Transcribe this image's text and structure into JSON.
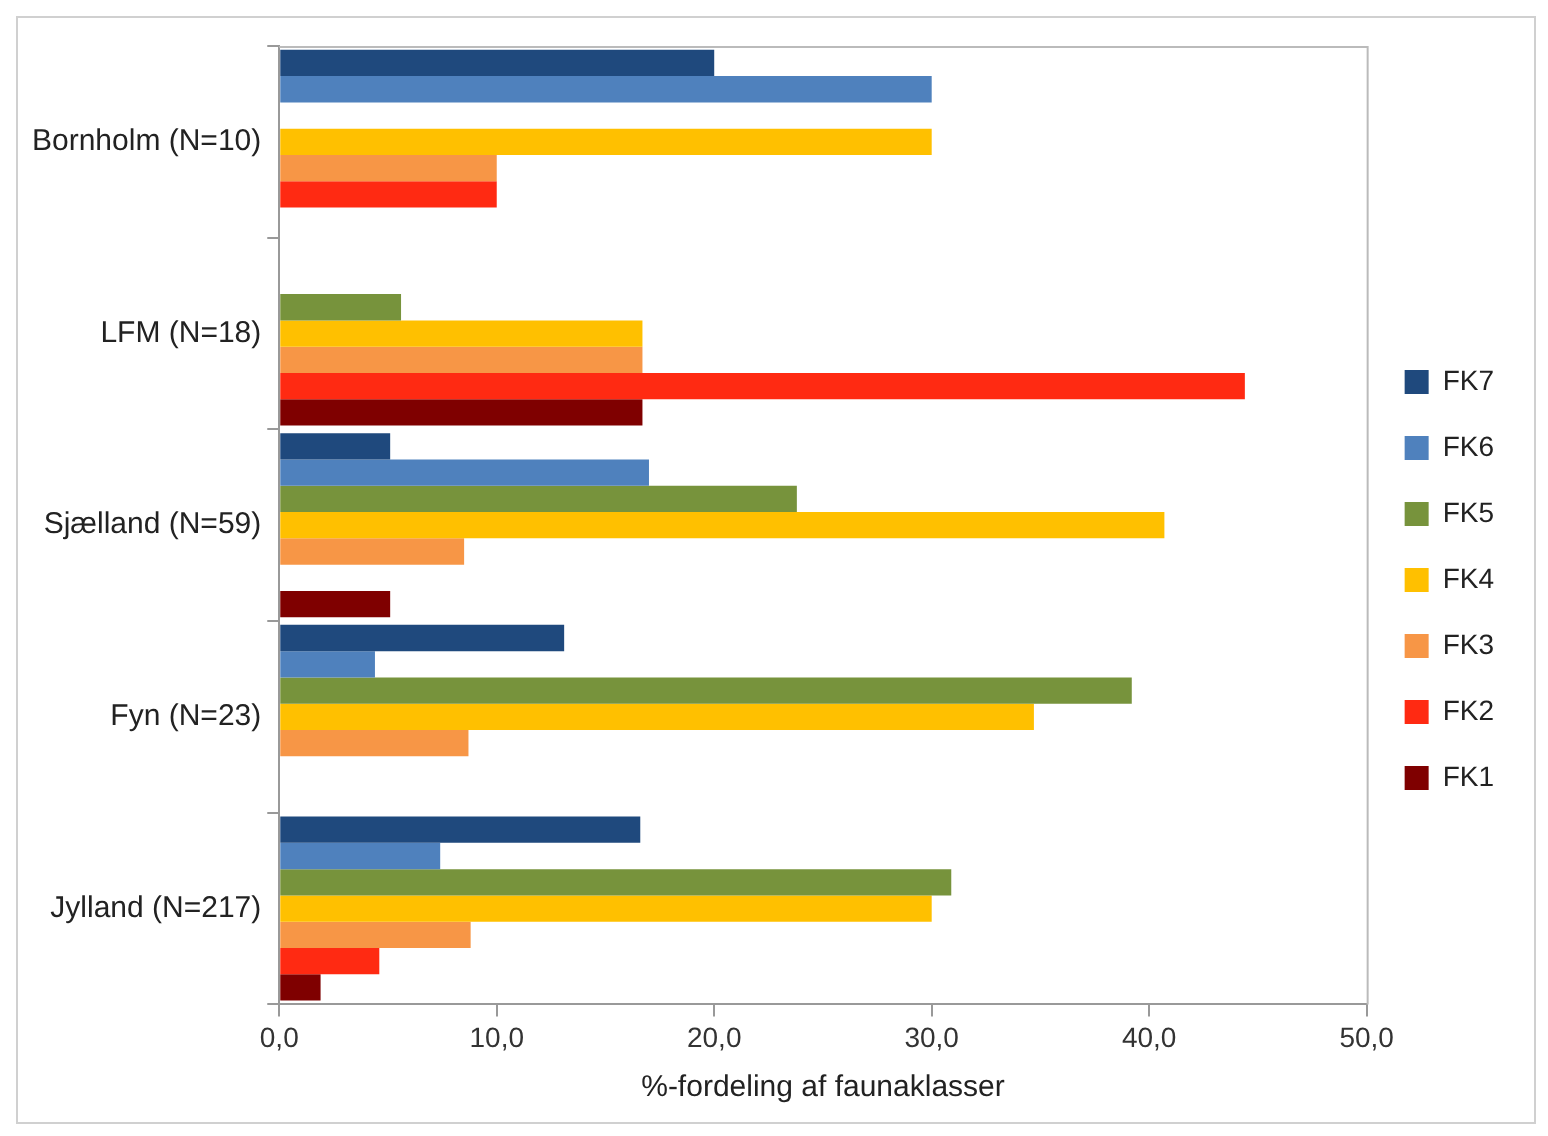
{
  "chart_data": {
    "type": "bar",
    "orientation": "horizontal",
    "xlabel": "%-fordeling af faunaklasser",
    "categories": [
      "Bornholm (N=10)",
      "LFM (N=18)",
      "Sjælland (N=59)",
      "Fyn (N=23)",
      "Jylland (N=217)"
    ],
    "series": [
      {
        "name": "FK7",
        "color": "#1f497d",
        "values": [
          20.0,
          0,
          5.1,
          13.1,
          16.6
        ]
      },
      {
        "name": "FK6",
        "color": "#4f81bd",
        "values": [
          30.0,
          0,
          17.0,
          4.4,
          7.4
        ]
      },
      {
        "name": "FK5",
        "color": "#77933c",
        "values": [
          0,
          5.6,
          23.8,
          39.2,
          30.9
        ]
      },
      {
        "name": "FK4",
        "color": "#ffc000",
        "values": [
          30.0,
          16.7,
          40.7,
          34.7,
          30.0
        ]
      },
      {
        "name": "FK3",
        "color": "#f79646",
        "values": [
          10.0,
          16.7,
          8.5,
          8.7,
          8.8
        ]
      },
      {
        "name": "FK2",
        "color": "#ff2a12",
        "values": [
          10.0,
          44.4,
          0,
          0,
          4.6
        ]
      },
      {
        "name": "FK1",
        "color": "#7f0000",
        "values": [
          0,
          16.7,
          5.1,
          0,
          1.9
        ]
      }
    ],
    "xlim": [
      0,
      50
    ],
    "xticks": [
      {
        "value": 0,
        "label": "0,0"
      },
      {
        "value": 10,
        "label": "10,0"
      },
      {
        "value": 20,
        "label": "20,0"
      },
      {
        "value": 30,
        "label": "30,0"
      },
      {
        "value": 40,
        "label": "40,0"
      },
      {
        "value": 50,
        "label": "50,0"
      }
    ],
    "grid": false,
    "legend": "right"
  }
}
